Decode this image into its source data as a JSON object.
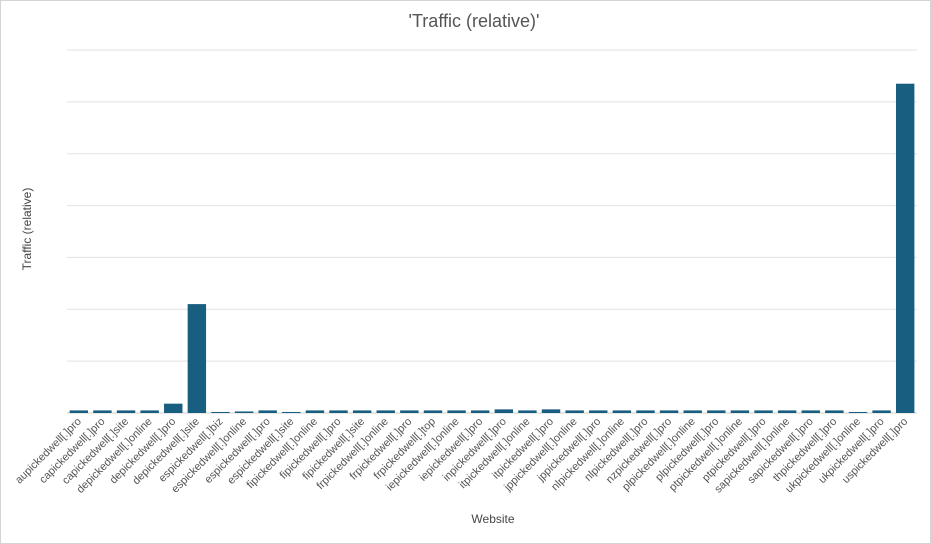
{
  "chart_data": {
    "type": "bar",
    "title": "'Traffic (relative)'",
    "xlabel": "Website",
    "ylabel": "Traffic (relative)",
    "ylim": [
      0,
      7
    ],
    "grid": true,
    "legend": "none",
    "bar_color": "#175e80",
    "categories": [
      "aupickedwell[.]pro",
      "capickedwell[.]pro",
      "capickedwell[.]site",
      "depickedwell[.]online",
      "depickedwell[.]pro",
      "depickedwell[.]site",
      "espickedwell[.]biz",
      "espickedwell[.]online",
      "espickedwell[.]pro",
      "espickedwell[.]site",
      "fipickedwell[.]online",
      "fipickedwell[.]pro",
      "fipickedwell[.]site",
      "frpickedwell[.]online",
      "frpickedwell[.]pro",
      "frpickedwell[.]top",
      "iepickedwell[.]online",
      "iepickedwell[.]pro",
      "inpickedwell[.]pro",
      "itpickedwell[.]online",
      "itpickedwell[.]pro",
      "jppickedwell[.]online",
      "jppickedwell[.]pro",
      "nlpickedwell[.]online",
      "nlpickedwell[.]pro",
      "nzpickedwell[.]pro",
      "plpickedwell[.]online",
      "plpickedwell[.]pro",
      "ptpickedwell[.]online",
      "ptpickedwell[.]pro",
      "sapickedwell[.]online",
      "sapickedwell[.]pro",
      "thpickedwell[.]pro",
      "ukpickedwell[.]online",
      "ukpickedwell[.]pro",
      "uspickedwell[.]pro"
    ],
    "values": [
      0.05,
      0.05,
      0.05,
      0.05,
      0.18,
      2.1,
      0.02,
      0.03,
      0.05,
      0.02,
      0.05,
      0.05,
      0.05,
      0.05,
      0.05,
      0.05,
      0.05,
      0.05,
      0.07,
      0.05,
      0.07,
      0.05,
      0.05,
      0.05,
      0.05,
      0.05,
      0.05,
      0.05,
      0.05,
      0.05,
      0.05,
      0.05,
      0.05,
      0.02,
      0.05,
      6.35
    ]
  }
}
